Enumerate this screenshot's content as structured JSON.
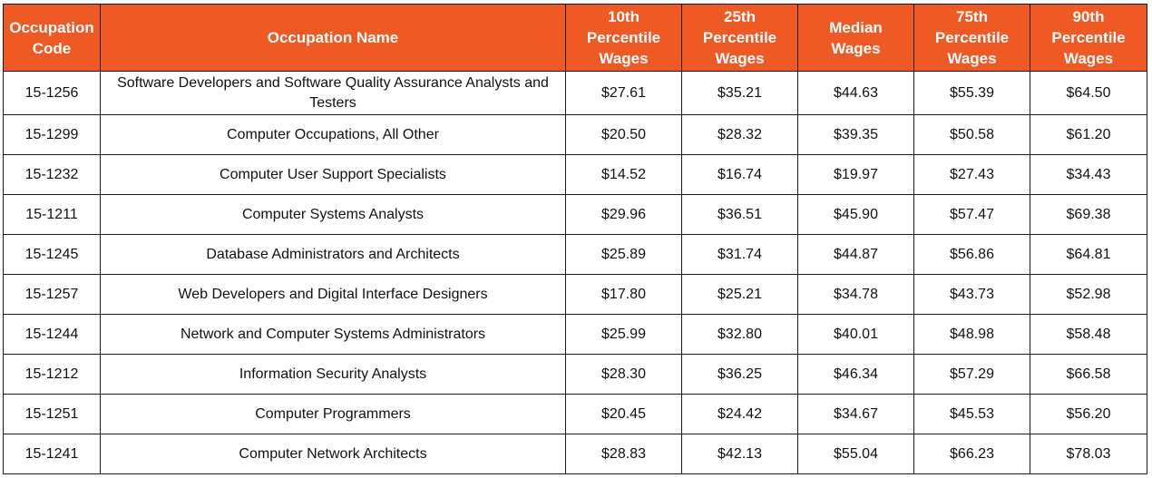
{
  "table": {
    "header_bg": "#ef5a24",
    "columns": [
      "Occupation\nCode",
      "Occupation Name",
      "10th\nPercentile\nWages",
      "25th\nPercentile\nWages",
      "Median\nWages",
      "75th\nPercentile\nWages",
      "90th\nPercentile\nWages"
    ],
    "rows": [
      [
        "15-1256",
        "Software Developers and Software Quality Assurance Analysts and Testers",
        "$27.61",
        "$35.21",
        "$44.63",
        "$55.39",
        "$64.50"
      ],
      [
        "15-1299",
        "Computer Occupations, All Other",
        "$20.50",
        "$28.32",
        "$39.35",
        "$50.58",
        "$61.20"
      ],
      [
        "15-1232",
        "Computer User Support Specialists",
        "$14.52",
        "$16.74",
        "$19.97",
        "$27.43",
        "$34.43"
      ],
      [
        "15-1211",
        "Computer Systems Analysts",
        "$29.96",
        "$36.51",
        "$45.90",
        "$57.47",
        "$69.38"
      ],
      [
        "15-1245",
        "Database Administrators and Architects",
        "$25.89",
        "$31.74",
        "$44.87",
        "$56.86",
        "$64.81"
      ],
      [
        "15-1257",
        "Web Developers and Digital Interface Designers",
        "$17.80",
        "$25.21",
        "$34.78",
        "$43.73",
        "$52.98"
      ],
      [
        "15-1244",
        "Network and Computer Systems Administrators",
        "$25.99",
        "$32.80",
        "$40.01",
        "$48.98",
        "$58.48"
      ],
      [
        "15-1212",
        "Information Security Analysts",
        "$28.30",
        "$36.25",
        "$46.34",
        "$57.29",
        "$66.58"
      ],
      [
        "15-1251",
        "Computer Programmers",
        "$20.45",
        "$24.42",
        "$34.67",
        "$45.53",
        "$56.20"
      ],
      [
        "15-1241",
        "Computer Network Architects",
        "$28.83",
        "$42.13",
        "$55.04",
        "$66.23",
        "$78.03"
      ]
    ]
  }
}
